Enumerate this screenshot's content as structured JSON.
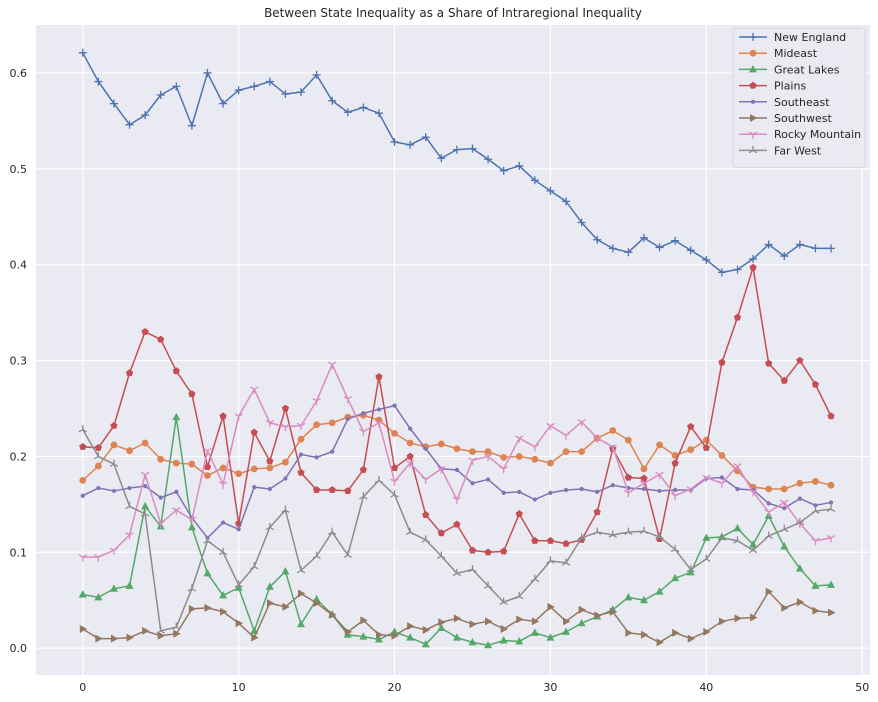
{
  "chart_data": {
    "type": "line",
    "title": "Between State Inequality as a Share of Intraregional Inequality",
    "xlabel": "",
    "ylabel": "",
    "xlim": [
      -3,
      50.5
    ],
    "ylim": [
      -0.028,
      0.65
    ],
    "xticks": [
      0,
      10,
      20,
      30,
      40,
      50
    ],
    "yticks": [
      0.0,
      0.1,
      0.2,
      0.3,
      0.4,
      0.5,
      0.6
    ],
    "ytick_labels": [
      "0.0",
      "0.1",
      "0.2",
      "0.3",
      "0.4",
      "0.5",
      "0.6"
    ],
    "grid": true,
    "legend_position": "top-right",
    "x": [
      0,
      1,
      2,
      3,
      4,
      5,
      6,
      7,
      8,
      9,
      10,
      11,
      12,
      13,
      14,
      15,
      16,
      17,
      18,
      19,
      20,
      21,
      22,
      23,
      24,
      25,
      26,
      27,
      28,
      29,
      30,
      31,
      32,
      33,
      34,
      35,
      36,
      37,
      38,
      39,
      40,
      41,
      42,
      43,
      44,
      45,
      46,
      47,
      48
    ],
    "series": [
      {
        "name": "New England",
        "color": "#4c72b0",
        "marker": "plus",
        "values": [
          0.621,
          0.591,
          0.568,
          0.546,
          0.556,
          0.577,
          0.586,
          0.545,
          0.6,
          0.568,
          0.582,
          0.586,
          0.591,
          0.578,
          0.58,
          0.598,
          0.571,
          0.559,
          0.564,
          0.558,
          0.528,
          0.525,
          0.533,
          0.511,
          0.52,
          0.521,
          0.51,
          0.498,
          0.503,
          0.488,
          0.477,
          0.466,
          0.444,
          0.426,
          0.417,
          0.413,
          0.428,
          0.418,
          0.425,
          0.415,
          0.405,
          0.392,
          0.395,
          0.406,
          0.421,
          0.409,
          0.421,
          0.417,
          0.417
        ]
      },
      {
        "name": "Mideast",
        "color": "#dd8452",
        "marker": "circle",
        "values": [
          0.175,
          0.19,
          0.212,
          0.206,
          0.214,
          0.197,
          0.193,
          0.192,
          0.18,
          0.188,
          0.182,
          0.187,
          0.188,
          0.194,
          0.218,
          0.233,
          0.235,
          0.241,
          0.243,
          0.238,
          0.224,
          0.214,
          0.21,
          0.213,
          0.208,
          0.205,
          0.205,
          0.199,
          0.2,
          0.197,
          0.193,
          0.205,
          0.205,
          0.219,
          0.227,
          0.217,
          0.187,
          0.212,
          0.201,
          0.207,
          0.217,
          0.201,
          0.185,
          0.168,
          0.166,
          0.166,
          0.172,
          0.174,
          0.17
        ]
      },
      {
        "name": "Great Lakes",
        "color": "#55a868",
        "marker": "triangle-up",
        "values": [
          0.056,
          0.053,
          0.062,
          0.065,
          0.148,
          0.127,
          0.241,
          0.126,
          0.078,
          0.055,
          0.063,
          0.018,
          0.064,
          0.08,
          0.025,
          0.051,
          0.035,
          0.014,
          0.012,
          0.009,
          0.017,
          0.011,
          0.004,
          0.021,
          0.011,
          0.006,
          0.003,
          0.008,
          0.007,
          0.016,
          0.011,
          0.017,
          0.026,
          0.033,
          0.04,
          0.053,
          0.05,
          0.059,
          0.073,
          0.079,
          0.115,
          0.116,
          0.125,
          0.108,
          0.138,
          0.106,
          0.083,
          0.065,
          0.066
        ]
      },
      {
        "name": "Plains",
        "color": "#c44e52",
        "marker": "pentagon",
        "values": [
          0.21,
          0.209,
          0.232,
          0.287,
          0.33,
          0.322,
          0.289,
          0.265,
          0.189,
          0.242,
          0.13,
          0.225,
          0.195,
          0.25,
          0.183,
          0.165,
          0.165,
          0.164,
          0.186,
          0.283,
          0.188,
          0.2,
          0.139,
          0.12,
          0.129,
          0.102,
          0.1,
          0.101,
          0.14,
          0.112,
          0.112,
          0.109,
          0.113,
          0.142,
          0.208,
          0.178,
          0.177,
          0.114,
          0.193,
          0.231,
          0.209,
          0.298,
          0.345,
          0.397,
          0.297,
          0.279,
          0.3,
          0.275,
          0.242
        ]
      },
      {
        "name": "Southeast",
        "color": "#8172b3",
        "marker": "dot",
        "values": [
          0.159,
          0.167,
          0.164,
          0.167,
          0.169,
          0.157,
          0.163,
          0.136,
          0.115,
          0.131,
          0.124,
          0.168,
          0.166,
          0.177,
          0.202,
          0.199,
          0.205,
          0.239,
          0.245,
          0.249,
          0.253,
          0.229,
          0.208,
          0.187,
          0.186,
          0.172,
          0.176,
          0.162,
          0.163,
          0.155,
          0.162,
          0.165,
          0.166,
          0.163,
          0.17,
          0.167,
          0.166,
          0.164,
          0.165,
          0.165,
          0.177,
          0.178,
          0.166,
          0.165,
          0.151,
          0.146,
          0.156,
          0.149,
          0.152
        ]
      },
      {
        "name": "Southwest",
        "color": "#937860",
        "marker": "triangle-right",
        "values": [
          0.02,
          0.01,
          0.01,
          0.011,
          0.018,
          0.013,
          0.015,
          0.041,
          0.042,
          0.038,
          0.026,
          0.011,
          0.047,
          0.043,
          0.057,
          0.047,
          0.035,
          0.017,
          0.029,
          0.014,
          0.013,
          0.023,
          0.019,
          0.027,
          0.031,
          0.025,
          0.028,
          0.02,
          0.03,
          0.028,
          0.043,
          0.028,
          0.04,
          0.034,
          0.038,
          0.016,
          0.014,
          0.006,
          0.016,
          0.01,
          0.017,
          0.028,
          0.031,
          0.032,
          0.059,
          0.042,
          0.048,
          0.039,
          0.037
        ]
      },
      {
        "name": "Rocky Mountain",
        "color": "#da8bc3",
        "marker": "tri-down",
        "values": [
          0.095,
          0.095,
          0.102,
          0.118,
          0.181,
          0.13,
          0.144,
          0.134,
          0.206,
          0.171,
          0.242,
          0.27,
          0.235,
          0.231,
          0.232,
          0.258,
          0.296,
          0.26,
          0.226,
          0.235,
          0.174,
          0.193,
          0.176,
          0.187,
          0.155,
          0.196,
          0.2,
          0.187,
          0.219,
          0.21,
          0.232,
          0.222,
          0.236,
          0.219,
          0.21,
          0.162,
          0.172,
          0.181,
          0.159,
          0.166,
          0.178,
          0.172,
          0.19,
          0.163,
          0.142,
          0.152,
          0.13,
          0.112,
          0.115
        ]
      },
      {
        "name": "Far West",
        "color": "#8c8c8c",
        "marker": "tri-up",
        "values": [
          0.228,
          0.2,
          0.192,
          0.148,
          0.14,
          0.018,
          0.022,
          0.062,
          0.112,
          0.1,
          0.066,
          0.085,
          0.126,
          0.144,
          0.081,
          0.096,
          0.121,
          0.097,
          0.158,
          0.175,
          0.16,
          0.121,
          0.113,
          0.096,
          0.078,
          0.082,
          0.065,
          0.048,
          0.054,
          0.072,
          0.091,
          0.089,
          0.115,
          0.121,
          0.118,
          0.121,
          0.122,
          0.116,
          0.103,
          0.082,
          0.093,
          0.115,
          0.112,
          0.102,
          0.117,
          0.124,
          0.131,
          0.143,
          0.145
        ]
      }
    ]
  }
}
